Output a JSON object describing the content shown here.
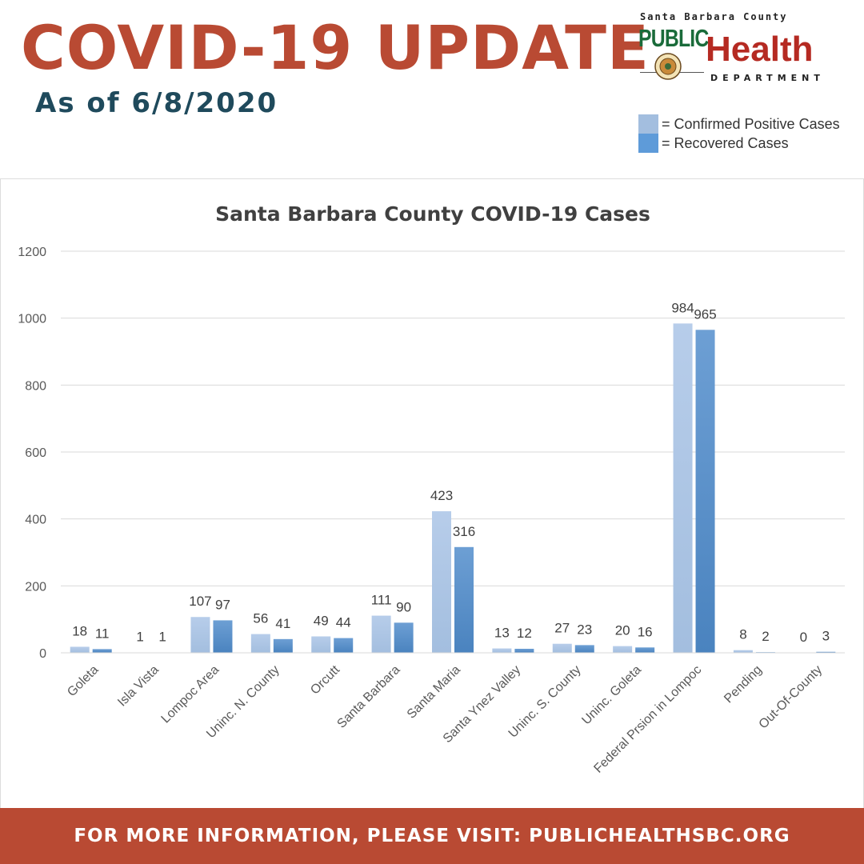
{
  "header": {
    "title": "COVID-19 UPDATE",
    "subtitle": "As of 6/8/2020"
  },
  "logo": {
    "line1": "Santa Barbara County",
    "line2": "PUBLIC",
    "line3": "Health",
    "line4": "DEPARTMENT"
  },
  "legend": [
    {
      "label": "= Confirmed Positive Cases",
      "color": "#a3bedf"
    },
    {
      "label": "= Recovered Cases",
      "color": "#5e9bd9"
    }
  ],
  "footer": {
    "text": "FOR MORE INFORMATION, PLEASE VISIT: PUBLICHEALTHSBC.ORG"
  },
  "chart_data": {
    "type": "bar",
    "title": "Santa Barbara County COVID-19 Cases",
    "xlabel": "",
    "ylabel": "",
    "ylim": [
      0,
      1200
    ],
    "yticks": [
      0,
      200,
      400,
      600,
      800,
      1000,
      1200
    ],
    "grid": true,
    "categories": [
      "Goleta",
      "Isla Vista",
      "Lompoc Area",
      "Uninc. N. County",
      "Orcutt",
      "Santa Barbara",
      "Santa Maria",
      "Santa Ynez Valley",
      "Uninc. S. County",
      "Uninc. Goleta",
      "Federal Prsion in Lompoc",
      "Pending",
      "Out-Of-County"
    ],
    "series": [
      {
        "values": [
          18,
          1,
          107,
          56,
          49,
          111,
          423,
          13,
          27,
          20,
          984,
          8,
          0
        ],
        "color": "#a3bedf",
        "color_top": "#b7cdea"
      },
      {
        "values": [
          11,
          1,
          97,
          41,
          44,
          90,
          316,
          12,
          23,
          16,
          965,
          2,
          3
        ],
        "color": "#4a83bf",
        "color_top": "#6d9fd4"
      }
    ]
  }
}
